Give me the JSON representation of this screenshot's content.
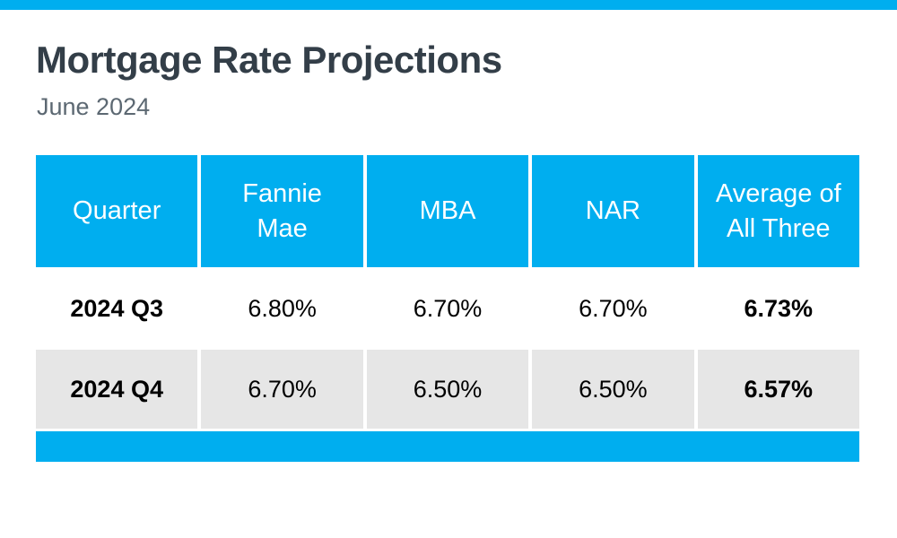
{
  "header": {
    "title": "Mortgage Rate Projections",
    "subtitle": "June 2024"
  },
  "colors": {
    "accent_blue": "#00AEEF",
    "alt_row_gray": "#E6E6E6",
    "title_color": "#333E48",
    "subtitle_color": "#5C6872",
    "cell_text": "#000000"
  },
  "chart_data": {
    "type": "table",
    "title": "Mortgage Rate Projections",
    "subtitle": "June 2024",
    "columns": [
      "Quarter",
      "Fannie Mae",
      "MBA",
      "NAR",
      "Average of All Three"
    ],
    "rows": [
      {
        "quarter": "2024 Q3",
        "fannie_mae": "6.80%",
        "mba": "6.70%",
        "nar": "6.70%",
        "average_of_all_three": "6.73%"
      },
      {
        "quarter": "2024 Q4",
        "fannie_mae": "6.70%",
        "mba": "6.50%",
        "nar": "6.50%",
        "average_of_all_three": "6.57%"
      }
    ],
    "numeric_values": {
      "categories": [
        "2024 Q3",
        "2024 Q4"
      ],
      "series": [
        {
          "name": "Fannie Mae",
          "values": [
            6.8,
            6.7
          ]
        },
        {
          "name": "MBA",
          "values": [
            6.7,
            6.5
          ]
        },
        {
          "name": "NAR",
          "values": [
            6.7,
            6.5
          ]
        },
        {
          "name": "Average of All Three",
          "values": [
            6.73,
            6.57
          ]
        }
      ],
      "unit": "percent"
    }
  }
}
